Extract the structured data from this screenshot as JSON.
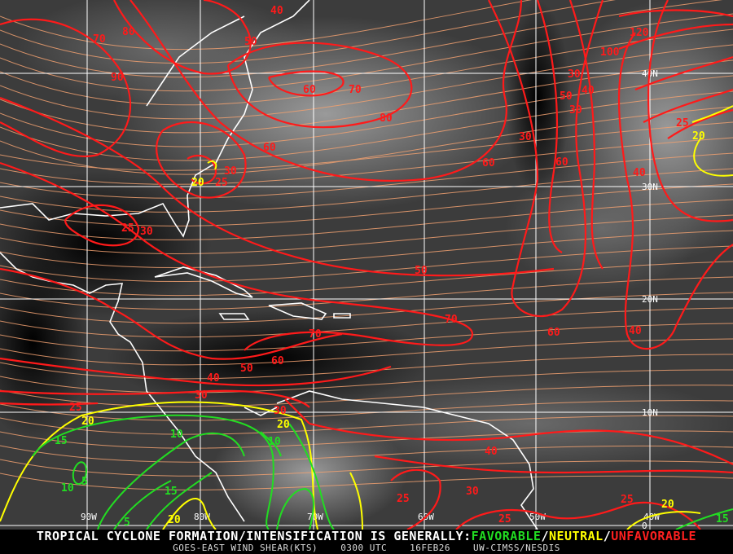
{
  "product": {
    "headline_prefix": "TROPICAL CYCLONE FORMATION/INTENSIFICATION IS GENERALLY:",
    "favorable": "FAVORABLE",
    "neutral": "NEUTRAL",
    "unfavorable": "UNFAVORABLE",
    "sep": "/",
    "title": "GOES-EAST WIND SHEAR(KTS)",
    "time": "0300 UTC",
    "date": "16FEB26",
    "source": "UW-CIMSS/NESDIS"
  },
  "colors": {
    "favorable": "#22dd22",
    "neutral": "#ffff00",
    "unfavorable": "#ff2020",
    "streamlines": "#f0a070",
    "grid": "#ffffff",
    "coast": "#ffffff"
  },
  "grid": {
    "longitudes": [
      "90W",
      "80W",
      "70W",
      "60W",
      "50W",
      "40W"
    ],
    "latitudes": [
      "40N",
      "30N",
      "20N",
      "10N",
      "0"
    ]
  },
  "contour_labels": [
    "40",
    "70",
    "80",
    "50",
    "90",
    "60",
    "70",
    "80",
    "120",
    "100",
    "30",
    "40",
    "30",
    "50",
    "60",
    "30",
    "25",
    "20",
    "30",
    "20",
    "25",
    "25",
    "30",
    "60",
    "60",
    "40",
    "50",
    "70",
    "60",
    "40",
    "70",
    "60",
    "50",
    "40",
    "30",
    "25",
    "20",
    "30",
    "20",
    "15",
    "10",
    "5",
    "15",
    "10",
    "10",
    "5",
    "20",
    "40",
    "30",
    "25",
    "25",
    "25",
    "20",
    "15"
  ]
}
